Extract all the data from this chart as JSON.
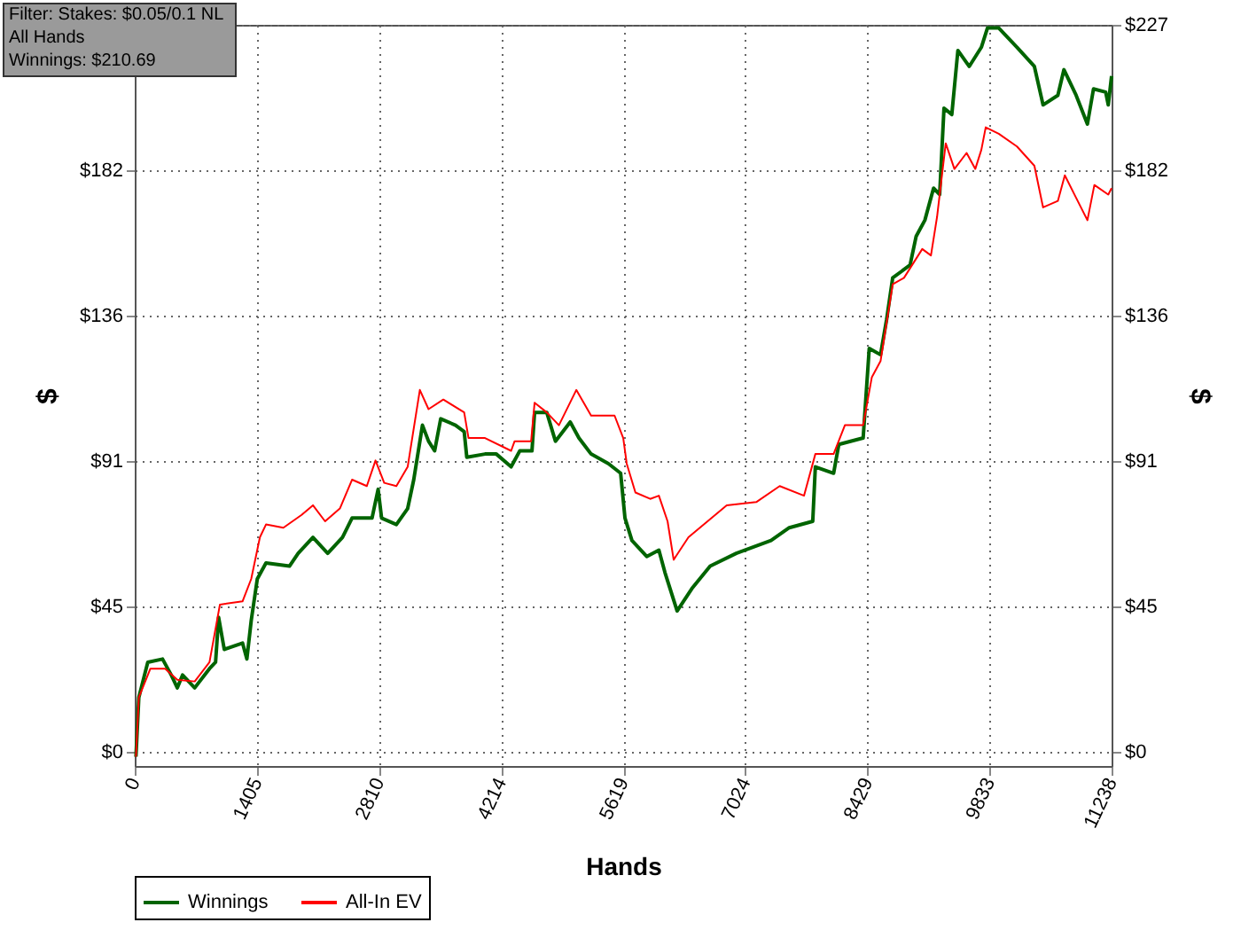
{
  "chart_data": {
    "type": "line",
    "xlabel": "Hands",
    "ylabel": "$",
    "y2label": "$",
    "annotations": [
      "Filter: Stakes: $0.05/0.1 NL",
      "All Hands",
      "Winnings: $210.69"
    ],
    "xlim": [
      0,
      11238
    ],
    "xticks": [
      0,
      1405,
      2810,
      4214,
      5619,
      7024,
      8429,
      9833,
      11238
    ],
    "ylim": [
      -4.4,
      227
    ],
    "yticks": [
      {
        "value": 0,
        "label": "$0"
      },
      {
        "value": 45.4,
        "label": "$45"
      },
      {
        "value": 90.8,
        "label": "$91"
      },
      {
        "value": 136.2,
        "label": "$136"
      },
      {
        "value": 181.6,
        "label": "$182"
      },
      {
        "value": 227,
        "label": null
      }
    ],
    "y2lim": [
      -4.4,
      227
    ],
    "y2ticks": [
      {
        "value": 0,
        "label": "$0"
      },
      {
        "value": 45.4,
        "label": "$45"
      },
      {
        "value": 90.8,
        "label": "$91"
      },
      {
        "value": 136.2,
        "label": "$136"
      },
      {
        "value": 181.6,
        "label": "$182"
      },
      {
        "value": 227,
        "label": "$227"
      }
    ],
    "grid": true,
    "legend": "bottom",
    "line_style": "solid",
    "marker": "none",
    "series": [
      {
        "name": "Winnings",
        "color": "#006400",
        "x": [
          14,
          47,
          150,
          320,
          420,
          490,
          550,
          690,
          860,
          930,
          965,
          1030,
          1240,
          1290,
          1340,
          1410,
          1510,
          1780,
          1880,
          2050,
          2220,
          2390,
          2500,
          2730,
          2800,
          2840,
          3010,
          3140,
          3210,
          3310,
          3380,
          3450,
          3520,
          3690,
          3790,
          3820,
          4030,
          4160,
          4330,
          4430,
          4570,
          4600,
          4740,
          4840,
          5010,
          5110,
          5250,
          5450,
          5590,
          5640,
          5720,
          5890,
          6030,
          6100,
          6240,
          6410,
          6620,
          6920,
          7320,
          7530,
          7800,
          7830,
          8040,
          8100,
          8380,
          8450,
          8580,
          8650,
          8720,
          8920,
          8990,
          9090,
          9190,
          9260,
          9310,
          9400,
          9470,
          9600,
          9740,
          9810,
          9940,
          10150,
          10350,
          10450,
          10620,
          10690,
          10830,
          10960,
          11030,
          11170,
          11200,
          11238
        ],
        "values": [
          -1.5,
          17,
          28,
          29,
          24,
          20,
          24,
          20,
          26,
          28,
          42,
          32,
          34,
          29,
          41,
          54,
          59,
          58,
          62,
          67,
          62,
          67,
          73,
          73,
          82,
          73,
          71,
          76,
          85,
          102,
          97,
          94,
          104,
          102,
          100,
          92,
          93,
          93,
          89,
          94,
          94,
          106,
          106,
          97,
          103,
          98,
          93,
          90,
          87,
          73,
          66,
          61,
          63,
          56,
          44,
          51,
          58,
          62,
          66,
          70,
          72,
          89,
          87,
          96,
          98,
          126,
          124,
          135,
          148,
          152,
          161,
          166,
          176,
          174,
          201,
          199,
          219,
          214,
          220,
          226,
          226,
          220,
          214,
          202,
          205,
          213,
          205,
          196,
          207,
          206,
          202,
          211
        ]
      },
      {
        "name": "All-In EV",
        "color": "#ff0000",
        "x": [
          14,
          47,
          180,
          350,
          490,
          690,
          860,
          980,
          1240,
          1340,
          1440,
          1510,
          1710,
          1920,
          2050,
          2190,
          2360,
          2500,
          2670,
          2770,
          2870,
          3010,
          3140,
          3280,
          3380,
          3550,
          3790,
          3840,
          4030,
          4330,
          4370,
          4560,
          4600,
          4740,
          4880,
          5080,
          5250,
          5520,
          5620,
          5660,
          5760,
          5930,
          6030,
          6130,
          6200,
          6370,
          6810,
          7150,
          7420,
          7700,
          7830,
          8040,
          8170,
          8380,
          8480,
          8580,
          8720,
          8850,
          9060,
          9160,
          9230,
          9330,
          9430,
          9570,
          9670,
          9740,
          9790,
          9940,
          10150,
          10350,
          10450,
          10620,
          10700,
          10830,
          10960,
          11040,
          11200,
          11238
        ],
        "values": [
          -1.5,
          17,
          26,
          26,
          22.5,
          22,
          28,
          46,
          47,
          54,
          67,
          71,
          70,
          74,
          77,
          72,
          76,
          85,
          83,
          91,
          84,
          83,
          89,
          113,
          107,
          110,
          106,
          98,
          98,
          94,
          97,
          97,
          109,
          106,
          102,
          113,
          105,
          105,
          98,
          90,
          81,
          79,
          80,
          72,
          60,
          67,
          77,
          78,
          83,
          80,
          93,
          93,
          102,
          102,
          117,
          122,
          146,
          148,
          157,
          155,
          167,
          190,
          182,
          187,
          182,
          188,
          195,
          193,
          189,
          183,
          170,
          172,
          180,
          173,
          166,
          177,
          174,
          176
        ]
      }
    ]
  }
}
